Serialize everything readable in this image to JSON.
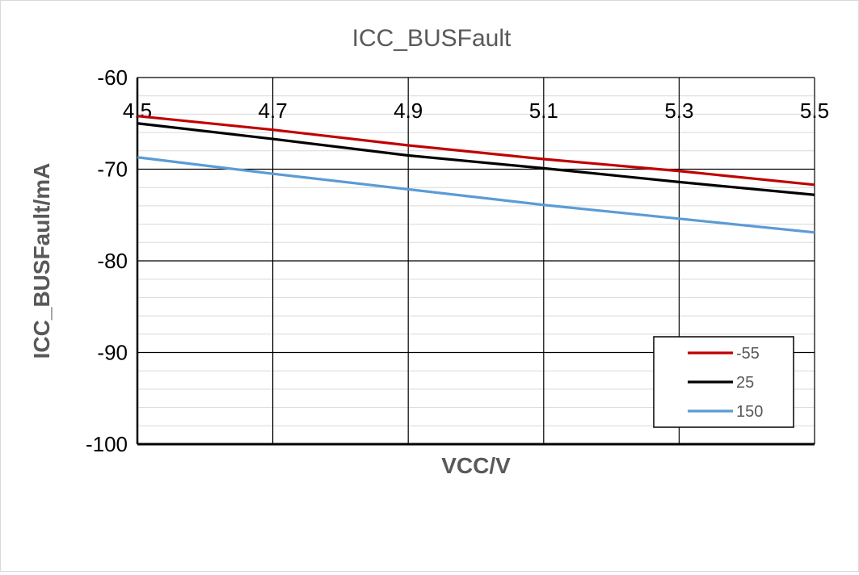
{
  "chart_data": {
    "type": "line",
    "title": "ICC_BUSFault",
    "xlabel": "VCC/V",
    "ylabel": "ICC_BUSFault/mA",
    "xlim": [
      4.5,
      5.5
    ],
    "ylim": [
      -100,
      -60
    ],
    "x_ticks": [
      "4.5",
      "4.7",
      "4.9",
      "5.1",
      "5.3",
      "5.5"
    ],
    "y_ticks": [
      "-60",
      "-70",
      "-80",
      "-90",
      "-100"
    ],
    "x_tick_values": [
      4.5,
      4.7,
      4.9,
      5.1,
      5.3,
      5.5
    ],
    "y_tick_values": [
      -60,
      -70,
      -80,
      -90,
      -100
    ],
    "x_axis_position": "top",
    "grid": true,
    "legend_position": "bottom-right",
    "x": [
      4.5,
      4.7,
      4.9,
      5.1,
      5.3,
      5.5
    ],
    "series": [
      {
        "name": "-55",
        "color": "#c00000",
        "values": [
          -64.2,
          -65.7,
          -67.4,
          -68.9,
          -70.2,
          -71.7
        ]
      },
      {
        "name": "25",
        "color": "#000000",
        "values": [
          -65.0,
          -66.7,
          -68.5,
          -69.9,
          -71.4,
          -72.8
        ]
      },
      {
        "name": "150",
        "color": "#5b9bd5",
        "values": [
          -68.7,
          -70.5,
          -72.2,
          -73.9,
          -75.4,
          -76.9
        ]
      }
    ]
  }
}
